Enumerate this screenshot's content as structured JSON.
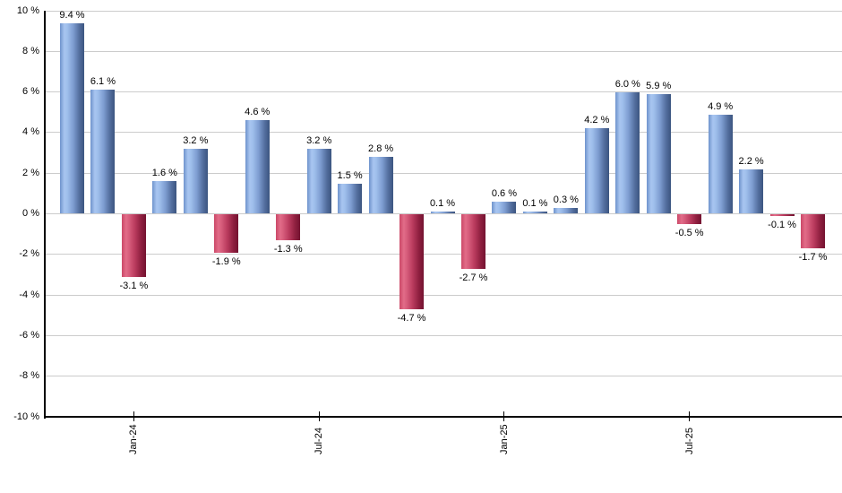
{
  "chart": {
    "background_color": "#ffffff",
    "axis_color": "#000000",
    "grid_color": "#cccccc",
    "text_color": "#000000"
  },
  "chart_data": {
    "type": "bar",
    "title": "",
    "xlabel": "",
    "ylabel": "",
    "ylim": [
      -10,
      10
    ],
    "grid": true,
    "legend_position": "none",
    "values": [
      9.4,
      6.1,
      -3.1,
      1.6,
      3.2,
      -1.9,
      4.6,
      -1.3,
      3.2,
      1.5,
      2.8,
      -4.7,
      0.1,
      -2.7,
      0.6,
      0.1,
      0.3,
      4.2,
      6.0,
      5.9,
      -0.5,
      4.9,
      2.2,
      -0.1,
      -1.7
    ],
    "bar_labels": [
      "9.4 %",
      "6.1 %",
      "-3.1 %",
      "1.6 %",
      "3.2 %",
      "-1.9 %",
      "4.6 %",
      "-1.3 %",
      "3.2 %",
      "1.5 %",
      "2.8 %",
      "-4.7 %",
      "0.1 %",
      "-2.7 %",
      "0.6 %",
      "0.1 %",
      "0.3 %",
      "4.2 %",
      "6.0 %",
      "5.9 %",
      "-0.5 %",
      "4.9 %",
      "2.2 %",
      "-0.1 %",
      "-1.7 %"
    ],
    "x_ticks": [
      {
        "bar_index": 2,
        "label": "Jan-24"
      },
      {
        "bar_index": 8,
        "label": "Jul-24"
      },
      {
        "bar_index": 14,
        "label": "Jan-25"
      },
      {
        "bar_index": 20,
        "label": "Jul-25"
      }
    ],
    "y_ticks": [
      {
        "value": 10,
        "label": "10 %"
      },
      {
        "value": 8,
        "label": "8 %"
      },
      {
        "value": 6,
        "label": "6 %"
      },
      {
        "value": 4,
        "label": "4 %"
      },
      {
        "value": 2,
        "label": "2 %"
      },
      {
        "value": 0,
        "label": "0 %"
      },
      {
        "value": -2,
        "label": "-2 %"
      },
      {
        "value": -4,
        "label": "-4 %"
      },
      {
        "value": -6,
        "label": "-6 %"
      },
      {
        "value": -8,
        "label": "-8 %"
      },
      {
        "value": -10,
        "label": "-10 %"
      }
    ],
    "positive_color": "#7d9cd0",
    "negative_color": "#b93a5d",
    "positive_bar_gradient": [
      "#6e93cc",
      "#a8c5f0",
      "#9fbfec",
      "#7d9cd0",
      "#536e9e",
      "#3c5580"
    ],
    "negative_bar_gradient": [
      "#cb4868",
      "#e26c88",
      "#d75d7c",
      "#b93a5d",
      "#8e1f3f",
      "#741330"
    ]
  }
}
